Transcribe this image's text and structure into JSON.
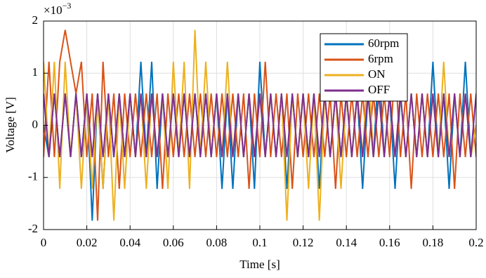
{
  "chart_data": {
    "type": "line",
    "xlabel": "Time [s]",
    "ylabel": "Voltage [V]",
    "y_multiplier_base": "×10",
    "y_multiplier_power": "−3",
    "xlim": [
      0,
      0.2
    ],
    "xticks": [
      0,
      0.02,
      0.04,
      0.06,
      0.08,
      0.1,
      0.12,
      0.14,
      0.16,
      0.18,
      0.2
    ],
    "ylim": [
      -2,
      2
    ],
    "yticks": [
      -2,
      -1,
      0,
      1,
      2
    ],
    "grid": true,
    "legend": "northeast",
    "x": [
      0,
      0.0025,
      0.005,
      0.0075,
      0.01,
      0.0125,
      0.015,
      0.0175,
      0.02,
      0.0225,
      0.025,
      0.0275,
      0.03,
      0.0325,
      0.035,
      0.0375,
      0.04,
      0.0425,
      0.045,
      0.0475,
      0.05,
      0.0525,
      0.055,
      0.0575,
      0.06,
      0.0625,
      0.065,
      0.0675,
      0.07,
      0.0725,
      0.075,
      0.0775,
      0.08,
      0.0825,
      0.085,
      0.0875,
      0.09,
      0.0925,
      0.095,
      0.0975,
      0.1,
      0.1025,
      0.105,
      0.1075,
      0.11,
      0.1125,
      0.115,
      0.1175,
      0.12,
      0.1225,
      0.125,
      0.1275,
      0.13,
      0.1325,
      0.135,
      0.1375,
      0.14,
      0.1425,
      0.145,
      0.1475,
      0.15,
      0.1525,
      0.155,
      0.1575,
      0.16,
      0.1625,
      0.165,
      0.1675,
      0.17,
      0.1725,
      0.175,
      0.1775,
      0.18,
      0.1825,
      0.185,
      0.1875,
      0.19,
      0.1925,
      0.195,
      0.1975,
      0.2
    ],
    "series": [
      {
        "name": "60rpm",
        "color": "#0072bd",
        "values": [
          0,
          -0.61,
          0.61,
          -0.61,
          0.61,
          -0.61,
          0.61,
          -0.61,
          0.61,
          -1.83,
          0.61,
          -1.22,
          0.61,
          -0.61,
          0.61,
          -0.61,
          0.61,
          -0.61,
          1.22,
          -0.61,
          1.22,
          -1.22,
          0.61,
          -0.61,
          0.61,
          -0.61,
          0.61,
          -0.61,
          0.61,
          -0.61,
          0.61,
          -0.61,
          0.61,
          -1.22,
          0.61,
          -1.22,
          0.61,
          -0.61,
          0.61,
          -1.22,
          1.22,
          -0.61,
          0.61,
          -0.61,
          0.61,
          -1.22,
          0.61,
          -0.61,
          0.61,
          -0.61,
          0.61,
          -1.22,
          0.61,
          -0.61,
          0.61,
          -0.61,
          0.61,
          -0.61,
          0.61,
          -1.22,
          0.61,
          -0.61,
          1.22,
          -0.61,
          0.61,
          -1.22,
          0.61,
          -0.61,
          0.61,
          -0.61,
          0.61,
          -0.61,
          1.22,
          -0.61,
          0.61,
          -1.22,
          0.61,
          -0.61,
          1.22,
          -0.61,
          0
        ]
      },
      {
        "name": "6rpm",
        "color": "#d95319",
        "values": [
          -0.61,
          1.22,
          -0.61,
          1.22,
          1.83,
          1.22,
          0.61,
          1.22,
          -0.61,
          0.61,
          -1.83,
          1.22,
          -0.61,
          0.61,
          -1.22,
          0.61,
          -0.61,
          0.61,
          -0.61,
          0.61,
          -0.61,
          0.61,
          -1.22,
          0.61,
          -0.61,
          0.61,
          -0.61,
          0.61,
          -0.61,
          0.61,
          -0.61,
          0.61,
          -0.61,
          0.61,
          -0.61,
          0.61,
          -0.61,
          0.61,
          -1.22,
          0.61,
          -0.61,
          1.22,
          -0.61,
          0.61,
          -0.61,
          0.61,
          -1.22,
          0.61,
          -0.61,
          0.61,
          -0.61,
          0.61,
          -0.61,
          0.61,
          -1.22,
          0.61,
          -0.61,
          0.61,
          -0.61,
          0.61,
          -0.61,
          0.61,
          -0.61,
          0.61,
          -0.61,
          1.22,
          -0.61,
          0.61,
          -1.22,
          0.61,
          -0.61,
          0.61,
          -0.61,
          0.61,
          -0.61,
          0.61,
          -1.22,
          0.61,
          -0.61,
          0.61,
          -0.61
        ]
      },
      {
        "name": "ON",
        "color": "#edb120",
        "values": [
          1.22,
          -0.61,
          1.22,
          -1.22,
          1.22,
          -0.61,
          0.61,
          -1.22,
          0.61,
          -1.22,
          0.61,
          -1.22,
          0.61,
          -1.83,
          0.61,
          -1.22,
          0.61,
          -0.61,
          0.61,
          -1.22,
          0.61,
          -0.61,
          0.61,
          -1.22,
          1.22,
          -0.61,
          1.22,
          -1.22,
          1.83,
          -0.61,
          1.22,
          -0.61,
          0.61,
          -0.61,
          1.22,
          -0.61,
          0.61,
          -0.61,
          0.61,
          -0.61,
          0.61,
          -0.61,
          0.61,
          -0.61,
          0.61,
          -1.83,
          0.61,
          -0.61,
          0.61,
          -1.22,
          0.61,
          -1.83,
          0.61,
          -0.61,
          0.61,
          -1.22,
          0.61,
          -0.61,
          0.61,
          -0.61,
          1.22,
          -0.61,
          0.61,
          -0.61,
          0.61,
          -0.61,
          0.61,
          -0.61,
          0.61,
          -0.61,
          0.61,
          -0.61,
          0.61,
          -0.61,
          1.22,
          -0.61,
          0.61,
          -0.61,
          0.61,
          -0.61,
          0
        ]
      },
      {
        "name": "OFF",
        "color": "#7e2f8e",
        "values": [
          0.61,
          -0.61,
          0.61,
          -0.61,
          0.61,
          -0.61,
          0.61,
          -0.61,
          0.61,
          -0.61,
          0.61,
          -0.61,
          0.61,
          -0.61,
          0.61,
          -0.61,
          0.61,
          -0.61,
          0.61,
          -0.61,
          0.61,
          -0.61,
          0.61,
          -0.61,
          0.61,
          -0.61,
          0.61,
          -0.61,
          0.61,
          -0.61,
          0.61,
          -0.61,
          0.61,
          -0.61,
          0.61,
          -0.61,
          0.61,
          -0.61,
          0.61,
          -0.61,
          0.61,
          -0.61,
          0.61,
          -0.61,
          0.61,
          -0.61,
          0.61,
          -0.61,
          0.61,
          -0.61,
          0.61,
          -0.61,
          0.61,
          -0.61,
          0.61,
          -0.61,
          0.61,
          -0.61,
          0.61,
          -0.61,
          0.61,
          -0.61,
          0.61,
          -0.61,
          0.61,
          -0.61,
          0.61,
          -0.61,
          0.61,
          -0.61,
          0.61,
          -0.61,
          0.61,
          -0.61,
          0.61,
          -0.61,
          0.61,
          -0.61,
          0.61,
          -0.61,
          0.61
        ]
      }
    ]
  }
}
